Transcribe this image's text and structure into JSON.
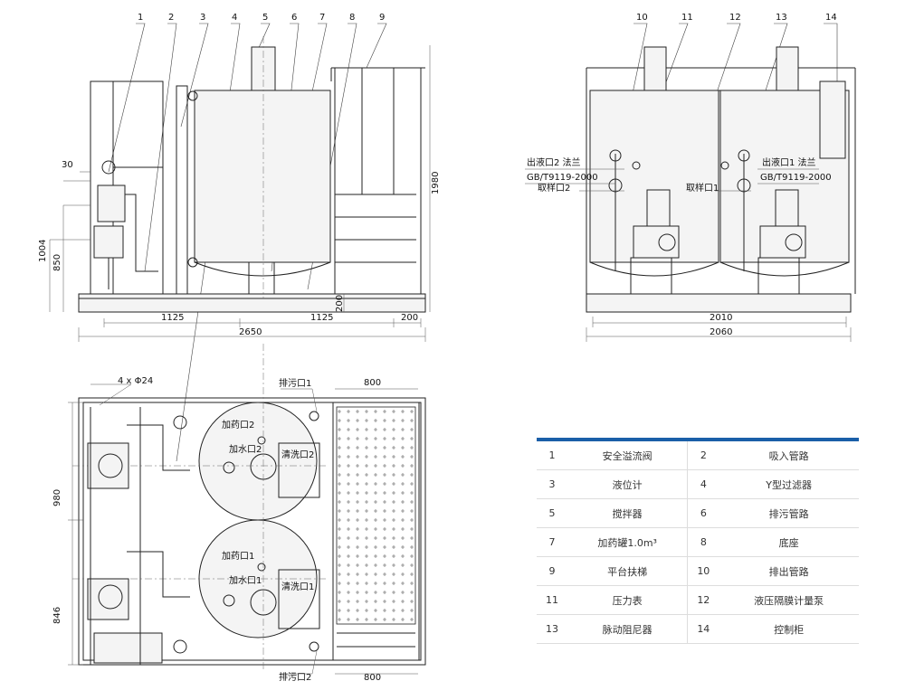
{
  "callouts": [
    "1",
    "2",
    "3",
    "4",
    "5",
    "6",
    "7",
    "8",
    "9",
    "10",
    "11",
    "12",
    "13",
    "14"
  ],
  "front_view": {
    "dims": {
      "d30": "30",
      "d1004": "1004",
      "d850": "850",
      "d1980": "1980",
      "d200v": "200",
      "d1125a": "1125",
      "d1125b": "1125",
      "d200h": "200",
      "d2650": "2650"
    }
  },
  "side_view": {
    "outlet2": "出液口2 法兰",
    "std2": "GB/T9119-2000",
    "sample2": "取样口2",
    "outlet1": "出液口1 法兰",
    "std1": "GB/T9119-2000",
    "sample1": "取样口1",
    "dims": {
      "d2010": "2010",
      "d2060": "2060"
    }
  },
  "plan_view": {
    "holes": "4 x Φ24",
    "drain1": "排污口1",
    "drain2": "排污口2",
    "w800a": "800",
    "w800b": "800",
    "d980": "980",
    "d846": "846",
    "dose2": "加药口2",
    "water2": "加水口2",
    "clean2": "清洗口2",
    "dose1": "加药口1",
    "water1": "加水口1",
    "clean1": "清洗口1"
  },
  "legend": [
    [
      "1",
      "安全溢流阀",
      "2",
      "吸入管路"
    ],
    [
      "3",
      "液位计",
      "4",
      "Y型过滤器"
    ],
    [
      "5",
      "搅拌器",
      "6",
      "排污管路"
    ],
    [
      "7",
      "加药罐1.0m³",
      "8",
      "底座"
    ],
    [
      "9",
      "平台扶梯",
      "10",
      "排出管路"
    ],
    [
      "11",
      "压力表",
      "12",
      "液压隔膜计量泵"
    ],
    [
      "13",
      "脉动阻尼器",
      "14",
      "控制柜"
    ]
  ],
  "colors": {
    "legend_accent": "#1a5fa8",
    "line": "#222222"
  }
}
